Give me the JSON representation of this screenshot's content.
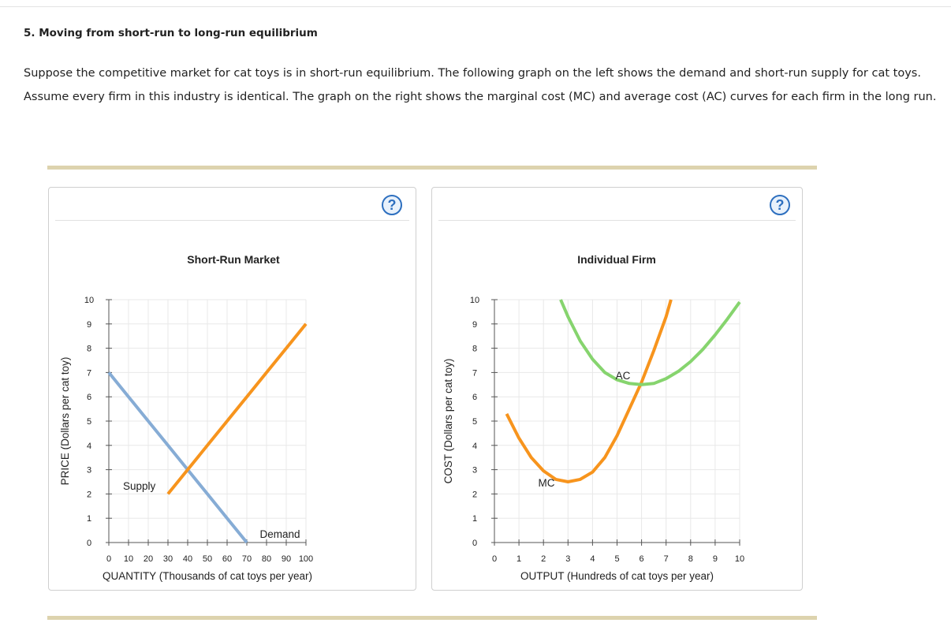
{
  "question": {
    "title": "5. Moving from short-run to long-run equilibrium",
    "text": "Suppose the competitive market for cat toys is in short-run equilibrium. The following graph on the left shows the demand and short-run supply for cat toys. Assume every firm in this industry is identical. The graph on the right shows the marginal cost (MC) and average cost (AC) curves for each firm in the long run."
  },
  "help_label": "?",
  "chart_data": [
    {
      "type": "line",
      "title": "Short-Run Market",
      "xlabel": "QUANTITY (Thousands of cat toys per year)",
      "ylabel": "PRICE (Dollars per cat toy)",
      "xlim": [
        0,
        100
      ],
      "ylim": [
        0,
        10
      ],
      "xticks": [
        0,
        10,
        20,
        30,
        40,
        50,
        60,
        70,
        80,
        90,
        100
      ],
      "yticks": [
        0,
        1,
        2,
        3,
        4,
        5,
        6,
        7,
        8,
        9,
        10
      ],
      "grid": true,
      "series": [
        {
          "name": "Demand",
          "color": "#86acd5",
          "points": [
            [
              0,
              7
            ],
            [
              10,
              6
            ],
            [
              20,
              5
            ],
            [
              30,
              4
            ],
            [
              40,
              3
            ],
            [
              50,
              2
            ],
            [
              60,
              1
            ],
            [
              70,
              0
            ]
          ]
        },
        {
          "name": "Supply",
          "color": "#f7941d",
          "points": [
            [
              30,
              2
            ],
            [
              40,
              3
            ],
            [
              50,
              4
            ],
            [
              60,
              5
            ],
            [
              70,
              6
            ],
            [
              80,
              7
            ],
            [
              90,
              8
            ],
            [
              100,
              9
            ]
          ]
        }
      ]
    },
    {
      "type": "line",
      "title": "Individual Firm",
      "xlabel": "OUTPUT (Hundreds of cat toys per year)",
      "ylabel": "COST (Dollars per cat toy)",
      "xlim": [
        0,
        10
      ],
      "ylim": [
        0,
        10
      ],
      "xticks": [
        0,
        1,
        2,
        3,
        4,
        5,
        6,
        7,
        8,
        9,
        10
      ],
      "yticks": [
        0,
        1,
        2,
        3,
        4,
        5,
        6,
        7,
        8,
        9,
        10
      ],
      "grid": true,
      "series": [
        {
          "name": "MC",
          "color": "#f7941d",
          "points": [
            [
              0.5,
              5.3
            ],
            [
              1,
              4.3
            ],
            [
              1.5,
              3.5
            ],
            [
              2,
              2.95
            ],
            [
              2.5,
              2.6
            ],
            [
              3,
              2.5
            ],
            [
              3.5,
              2.6
            ],
            [
              4,
              2.9
            ],
            [
              4.5,
              3.5
            ],
            [
              5,
              4.4
            ],
            [
              5.5,
              5.5
            ],
            [
              6,
              6.6
            ],
            [
              6.5,
              7.9
            ],
            [
              7,
              9.3
            ],
            [
              7.2,
              10
            ]
          ]
        },
        {
          "name": "AC",
          "color": "#86d46e",
          "points": [
            [
              2.7,
              10
            ],
            [
              3,
              9.3
            ],
            [
              3.5,
              8.3
            ],
            [
              4,
              7.55
            ],
            [
              4.5,
              7.0
            ],
            [
              5,
              6.7
            ],
            [
              5.5,
              6.55
            ],
            [
              6,
              6.5
            ],
            [
              6.5,
              6.55
            ],
            [
              7,
              6.75
            ],
            [
              7.5,
              7.05
            ],
            [
              8,
              7.45
            ],
            [
              8.5,
              7.95
            ],
            [
              9,
              8.55
            ],
            [
              9.5,
              9.2
            ],
            [
              10,
              9.9
            ]
          ]
        }
      ]
    }
  ]
}
